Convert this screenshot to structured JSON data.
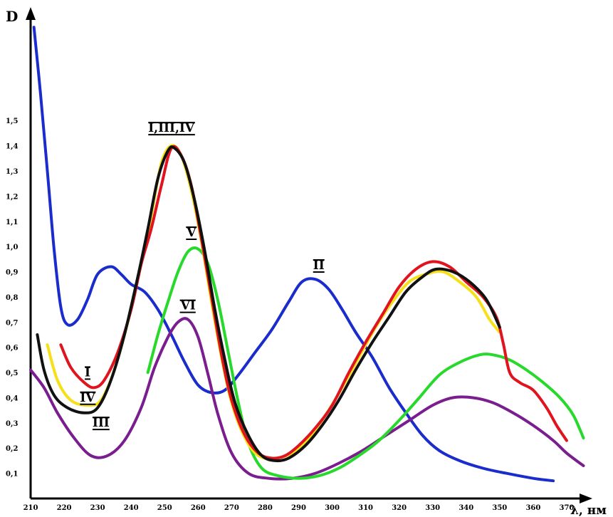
{
  "chart_data": {
    "type": "line",
    "ylabel": "D",
    "xlabel": "λ, нм",
    "xlim": [
      210,
      380
    ],
    "ylim": [
      0,
      1.95
    ],
    "x_ticks": [
      "210",
      "220",
      "230",
      "240",
      "250",
      "260",
      "270",
      "280",
      "290",
      "300",
      "310",
      "320",
      "330",
      "340",
      "350",
      "360",
      "370"
    ],
    "y_ticks": [
      "0,1",
      "0,2",
      "0,3",
      "0,4",
      "0,5",
      "0,6",
      "0,7",
      "0,8",
      "0,9",
      "1,0",
      "1,1",
      "1,2",
      "1,3",
      "1,4",
      "1,5"
    ],
    "grid": false,
    "series": [
      {
        "name": "I",
        "color": "#e0141e",
        "points": [
          [
            219,
            0.61
          ],
          [
            222,
            0.52
          ],
          [
            226,
            0.46
          ],
          [
            229,
            0.44
          ],
          [
            232,
            0.47
          ],
          [
            236,
            0.58
          ],
          [
            240,
            0.75
          ],
          [
            243,
            0.93
          ],
          [
            246,
            1.07
          ],
          [
            249,
            1.24
          ],
          [
            252,
            1.39
          ],
          [
            255,
            1.36
          ],
          [
            258,
            1.24
          ],
          [
            261,
            1.03
          ],
          [
            264,
            0.8
          ],
          [
            267,
            0.57
          ],
          [
            270,
            0.39
          ],
          [
            274,
            0.25
          ],
          [
            278,
            0.18
          ],
          [
            282,
            0.16
          ],
          [
            286,
            0.17
          ],
          [
            290,
            0.21
          ],
          [
            295,
            0.28
          ],
          [
            300,
            0.37
          ],
          [
            305,
            0.5
          ],
          [
            310,
            0.62
          ],
          [
            315,
            0.73
          ],
          [
            320,
            0.84
          ],
          [
            325,
            0.91
          ],
          [
            330,
            0.94
          ],
          [
            335,
            0.92
          ],
          [
            340,
            0.86
          ],
          [
            345,
            0.8
          ],
          [
            349,
            0.72
          ],
          [
            351,
            0.62
          ],
          [
            353,
            0.5
          ],
          [
            356,
            0.46
          ],
          [
            360,
            0.43
          ],
          [
            364,
            0.36
          ],
          [
            367,
            0.29
          ],
          [
            370,
            0.23
          ]
        ]
      },
      {
        "name": "II",
        "color": "#1a2ccc",
        "points": [
          [
            211,
            1.87
          ],
          [
            213,
            1.6
          ],
          [
            215,
            1.3
          ],
          [
            217,
            0.99
          ],
          [
            219,
            0.76
          ],
          [
            221,
            0.69
          ],
          [
            224,
            0.71
          ],
          [
            227,
            0.79
          ],
          [
            230,
            0.89
          ],
          [
            234,
            0.92
          ],
          [
            237,
            0.89
          ],
          [
            240,
            0.85
          ],
          [
            244,
            0.82
          ],
          [
            248,
            0.75
          ],
          [
            252,
            0.65
          ],
          [
            256,
            0.54
          ],
          [
            260,
            0.45
          ],
          [
            264,
            0.42
          ],
          [
            268,
            0.43
          ],
          [
            272,
            0.49
          ],
          [
            277,
            0.58
          ],
          [
            282,
            0.67
          ],
          [
            287,
            0.78
          ],
          [
            291,
            0.86
          ],
          [
            295,
            0.87
          ],
          [
            299,
            0.83
          ],
          [
            303,
            0.75
          ],
          [
            307,
            0.66
          ],
          [
            312,
            0.56
          ],
          [
            317,
            0.44
          ],
          [
            322,
            0.34
          ],
          [
            327,
            0.25
          ],
          [
            332,
            0.19
          ],
          [
            338,
            0.15
          ],
          [
            345,
            0.12
          ],
          [
            352,
            0.1
          ],
          [
            360,
            0.08
          ],
          [
            366,
            0.07
          ]
        ]
      },
      {
        "name": "III",
        "color": "#111111",
        "points": [
          [
            212,
            0.65
          ],
          [
            214,
            0.51
          ],
          [
            217,
            0.41
          ],
          [
            221,
            0.36
          ],
          [
            226,
            0.34
          ],
          [
            230,
            0.36
          ],
          [
            234,
            0.47
          ],
          [
            238,
            0.65
          ],
          [
            242,
            0.88
          ],
          [
            245,
            1.07
          ],
          [
            248,
            1.27
          ],
          [
            251,
            1.38
          ],
          [
            253,
            1.39
          ],
          [
            256,
            1.33
          ],
          [
            259,
            1.18
          ],
          [
            262,
            0.98
          ],
          [
            265,
            0.75
          ],
          [
            268,
            0.55
          ],
          [
            271,
            0.38
          ],
          [
            275,
            0.25
          ],
          [
            279,
            0.17
          ],
          [
            283,
            0.15
          ],
          [
            287,
            0.16
          ],
          [
            292,
            0.21
          ],
          [
            297,
            0.29
          ],
          [
            302,
            0.39
          ],
          [
            307,
            0.51
          ],
          [
            312,
            0.62
          ],
          [
            317,
            0.72
          ],
          [
            322,
            0.82
          ],
          [
            327,
            0.88
          ],
          [
            331,
            0.91
          ],
          [
            336,
            0.9
          ],
          [
            341,
            0.86
          ],
          [
            346,
            0.79
          ],
          [
            350,
            0.68
          ]
        ]
      },
      {
        "name": "IV",
        "color": "#f5e019",
        "points": [
          [
            215,
            0.61
          ],
          [
            218,
            0.47
          ],
          [
            222,
            0.39
          ],
          [
            227,
            0.37
          ],
          [
            231,
            0.39
          ],
          [
            235,
            0.51
          ],
          [
            239,
            0.7
          ],
          [
            243,
            0.93
          ],
          [
            246,
            1.12
          ],
          [
            249,
            1.33
          ],
          [
            252,
            1.4
          ],
          [
            255,
            1.36
          ],
          [
            258,
            1.22
          ],
          [
            261,
            1.02
          ],
          [
            264,
            0.78
          ],
          [
            267,
            0.56
          ],
          [
            270,
            0.38
          ],
          [
            274,
            0.24
          ],
          [
            278,
            0.17
          ],
          [
            283,
            0.16
          ],
          [
            288,
            0.18
          ],
          [
            293,
            0.24
          ],
          [
            298,
            0.33
          ],
          [
            303,
            0.44
          ],
          [
            308,
            0.56
          ],
          [
            313,
            0.68
          ],
          [
            318,
            0.78
          ],
          [
            323,
            0.86
          ],
          [
            328,
            0.89
          ],
          [
            333,
            0.9
          ],
          [
            338,
            0.86
          ],
          [
            343,
            0.8
          ],
          [
            347,
            0.71
          ],
          [
            350,
            0.66
          ]
        ]
      },
      {
        "name": "V",
        "color": "#27d92b",
        "points": [
          [
            245,
            0.5
          ],
          [
            248,
            0.65
          ],
          [
            251,
            0.78
          ],
          [
            254,
            0.9
          ],
          [
            257,
            0.98
          ],
          [
            260,
            0.99
          ],
          [
            263,
            0.93
          ],
          [
            266,
            0.78
          ],
          [
            269,
            0.58
          ],
          [
            272,
            0.38
          ],
          [
            275,
            0.22
          ],
          [
            279,
            0.12
          ],
          [
            284,
            0.09
          ],
          [
            290,
            0.08
          ],
          [
            296,
            0.09
          ],
          [
            302,
            0.12
          ],
          [
            308,
            0.17
          ],
          [
            314,
            0.23
          ],
          [
            320,
            0.31
          ],
          [
            326,
            0.4
          ],
          [
            332,
            0.49
          ],
          [
            338,
            0.54
          ],
          [
            344,
            0.57
          ],
          [
            348,
            0.57
          ],
          [
            353,
            0.55
          ],
          [
            358,
            0.51
          ],
          [
            363,
            0.46
          ],
          [
            368,
            0.4
          ],
          [
            372,
            0.33
          ],
          [
            375,
            0.24
          ]
        ]
      },
      {
        "name": "VI",
        "color": "#7a1d8f",
        "points": [
          [
            210,
            0.51
          ],
          [
            214,
            0.44
          ],
          [
            218,
            0.34
          ],
          [
            223,
            0.24
          ],
          [
            228,
            0.17
          ],
          [
            233,
            0.17
          ],
          [
            238,
            0.23
          ],
          [
            243,
            0.36
          ],
          [
            247,
            0.52
          ],
          [
            251,
            0.64
          ],
          [
            254,
            0.7
          ],
          [
            257,
            0.71
          ],
          [
            260,
            0.64
          ],
          [
            263,
            0.49
          ],
          [
            266,
            0.33
          ],
          [
            270,
            0.18
          ],
          [
            275,
            0.1
          ],
          [
            281,
            0.08
          ],
          [
            288,
            0.08
          ],
          [
            295,
            0.1
          ],
          [
            302,
            0.14
          ],
          [
            309,
            0.19
          ],
          [
            316,
            0.25
          ],
          [
            323,
            0.31
          ],
          [
            330,
            0.37
          ],
          [
            336,
            0.4
          ],
          [
            342,
            0.4
          ],
          [
            348,
            0.38
          ],
          [
            354,
            0.34
          ],
          [
            360,
            0.29
          ],
          [
            366,
            0.23
          ],
          [
            370,
            0.18
          ],
          [
            375,
            0.13
          ]
        ]
      }
    ],
    "annotations": [
      {
        "text": "I,III,IV",
        "x": 252,
        "y": 1.455
      },
      {
        "text": "V",
        "x": 258,
        "y": 1.04
      },
      {
        "text": "VI",
        "x": 257,
        "y": 0.75
      },
      {
        "text": "II",
        "x": 296,
        "y": 0.91
      },
      {
        "text": "I",
        "x": 227,
        "y": 0.485
      },
      {
        "text": "IV",
        "x": 227,
        "y": 0.385
      },
      {
        "text": "III",
        "x": 231,
        "y": 0.285
      }
    ]
  }
}
